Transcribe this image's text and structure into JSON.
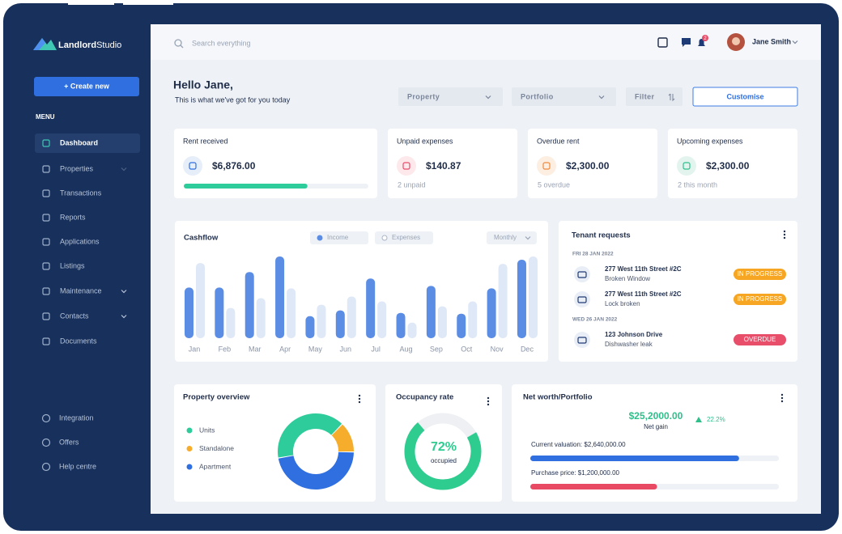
{
  "sidebar": {
    "logo_bold": "Landlord",
    "logo_light": "Studio",
    "create_button": "+ Create new",
    "menu_label": "MENU",
    "menu": [
      "Dashboard",
      "Properties",
      "Transactions",
      "Reports",
      "Applications",
      "Listings",
      "Maintenance",
      "Contacts",
      "Documents"
    ],
    "bottom_menu": [
      "Integration",
      "Offers",
      "Help centre"
    ]
  },
  "topbar": {
    "search_placeholder": "Search everything",
    "notification_count": "2",
    "user_name": "Jane Smith"
  },
  "header": {
    "greeting": "Hello Jane,",
    "subtitle": "This is what we've got for you today",
    "filters": [
      "Property",
      "Portfolio",
      "Filter"
    ],
    "customise_button": "Customise"
  },
  "stat_cards": [
    {
      "title": "Rent received",
      "amount": "$6,876.00",
      "progress": 0.67
    },
    {
      "title": "Unpaid expenses",
      "amount": "$140.87",
      "note": "2 unpaid"
    },
    {
      "title": "Overdue rent",
      "amount": "$2,300.00",
      "note": "5 overdue"
    },
    {
      "title": "Upcoming expenses",
      "amount": "$2,300.00",
      "note": "2 this month"
    }
  ],
  "cashflow": {
    "type": "bar",
    "title": "Cashflow",
    "period": "Monthly",
    "ylim": [
      0,
      100
    ],
    "categories": [
      "Jan",
      "Feb",
      "Mar",
      "Apr",
      "May",
      "Jun",
      "Jul",
      "Aug",
      "Sep",
      "Oct",
      "Nov",
      "Dec"
    ],
    "series": [
      {
        "name": "Income",
        "color": "#5b8de5",
        "values": [
          62,
          62,
          81,
          100,
          27,
          34,
          73,
          31,
          64,
          30,
          61,
          96
        ]
      },
      {
        "name": "Expenses",
        "color": "#dfe8f7",
        "values": [
          92,
          37,
          49,
          61,
          41,
          51,
          45,
          19,
          39,
          45,
          91,
          100
        ]
      }
    ]
  },
  "tenant_requests": {
    "title": "Tenant requests",
    "groups": [
      {
        "date": "FRI 28 JAN 2022",
        "items": [
          {
            "address": "277 West 11th Street #2C",
            "issue": "Broken Window",
            "status": "IN PROGRESS",
            "color": "#f6a623"
          },
          {
            "address": "277 West 11th Street #2C",
            "issue": "Lock broken",
            "status": "IN PROGRESS",
            "color": "#f6a623"
          }
        ]
      },
      {
        "date": "WED 26 JAN 2022",
        "items": [
          {
            "address": "123 Johnson Drive",
            "issue": "Dishwasher leak",
            "status": "OVERDUE",
            "color": "#e84d6a"
          }
        ]
      }
    ]
  },
  "property_overview": {
    "type": "pie",
    "title": "Property overview",
    "categories": [
      "Units",
      "Standalone",
      "Apartment"
    ],
    "values": [
      40,
      13,
      47
    ],
    "colors": [
      "#2ecc9a",
      "#f6ad2b",
      "#2f6fe0"
    ]
  },
  "occupancy": {
    "title": "Occupancy rate",
    "rate": {
      "value": 72,
      "label": "72%"
    },
    "caption": "occupied",
    "color": "#2ecc8f"
  },
  "net_worth": {
    "title": "Net worth/Portfolio",
    "net_gain": "$25,2000.00",
    "net_gain_label": "Net gain",
    "change": "22.2%",
    "bars": [
      {
        "label": "Current valuation: $2,640,000.00",
        "progress": 0.84,
        "color": "#2f6fe0"
      },
      {
        "label": "Purchase price: $1,200,000.00",
        "progress": 0.51,
        "color": "#e84a64"
      }
    ]
  }
}
